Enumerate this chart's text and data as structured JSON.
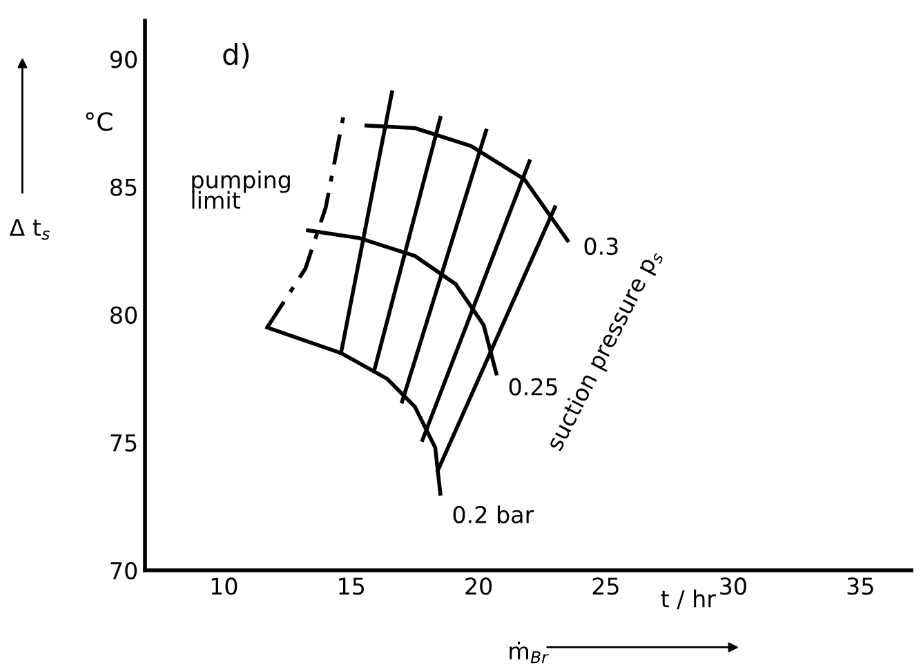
{
  "chart_data": {
    "type": "line",
    "xlabel": "ṁ$_{Br}$",
    "ylabel": "Δ t$_{s}$",
    "xlim": [
      6.9,
      37
    ],
    "ylim": [
      70,
      91.5
    ],
    "xticks": [
      10,
      15,
      20,
      25,
      30,
      35
    ],
    "yticks": [
      70,
      75,
      80,
      85,
      90
    ],
    "grid": false,
    "legend": false,
    "marker": "none",
    "series": [
      {
        "name": "0.3",
        "color": "#000000",
        "x": [
          15.6,
          17.5,
          19.7,
          21.8,
          23.5
        ],
        "values": [
          87.4,
          87.3,
          86.6,
          85.3,
          82.9
        ]
      },
      {
        "name": "0.25",
        "color": "#000000",
        "x": [
          13.3,
          15.3,
          17.5,
          19.1,
          20.2,
          20.7
        ],
        "values": [
          83.3,
          83.0,
          82.3,
          81.2,
          79.6,
          77.7
        ]
      },
      {
        "name": "0.2 bar",
        "color": "#000000",
        "x": [
          11.7,
          14.6,
          16.4,
          17.5,
          18.3,
          18.5
        ],
        "values": [
          79.5,
          78.5,
          77.5,
          76.4,
          74.8,
          73.0
        ]
      },
      {
        "name": "pumping\nlimit",
        "color": "#000000",
        "line_style": "dashed",
        "x": [
          11.7,
          13.2,
          14.0,
          14.7
        ],
        "values": [
          79.5,
          81.8,
          84.2,
          87.8
        ]
      },
      {
        "color": "#000000",
        "x": [
          14.6,
          16.6
        ],
        "values": [
          78.5,
          88.7
        ]
      },
      {
        "color": "#000000",
        "x": [
          15.9,
          18.5
        ],
        "values": [
          77.8,
          87.7
        ]
      },
      {
        "color": "#000000",
        "x": [
          17.0,
          20.3
        ],
        "values": [
          76.6,
          87.2
        ]
      },
      {
        "color": "#000000",
        "x": [
          17.8,
          22.0
        ],
        "values": [
          75.1,
          86.0
        ]
      },
      {
        "color": "#000000",
        "x": [
          18.4,
          23.0
        ],
        "values": [
          73.9,
          84.2
        ]
      }
    ],
    "annotations": [
      "d)",
      "°C",
      "t / hr",
      "suction pressure p$_{s}$"
    ]
  }
}
